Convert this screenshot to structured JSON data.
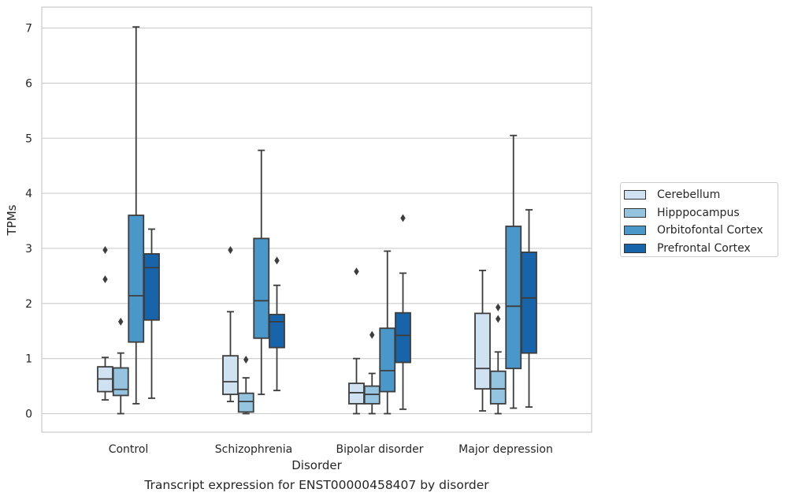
{
  "chart_data": {
    "type": "box",
    "title": "Transcript expression for ENST00000458407 by disorder",
    "xlabel": "Disorder",
    "ylabel": "TPMs",
    "ylim": [
      -0.32,
      7.38
    ],
    "yticks": [
      "0",
      "1",
      "2",
      "3",
      "4",
      "5",
      "6",
      "7"
    ],
    "grid": "horizontal",
    "legend_position": "right",
    "categories": [
      "Control",
      "Schizophrenia",
      "Bipolar disorder",
      "Major depression"
    ],
    "series": [
      {
        "name": "Cerebellum",
        "color": "#d0e1f2",
        "boxes": [
          {
            "whislo": 0.25,
            "q1": 0.4,
            "med": 0.63,
            "q3": 0.85,
            "whishi": 1.02,
            "fliers": [
              2.97,
              2.44
            ]
          },
          {
            "whislo": 0.22,
            "q1": 0.35,
            "med": 0.58,
            "q3": 1.05,
            "whishi": 1.85,
            "fliers": [
              2.97
            ]
          },
          {
            "whislo": 0.0,
            "q1": 0.18,
            "med": 0.38,
            "q3": 0.55,
            "whishi": 1.0,
            "fliers": [
              2.58
            ]
          },
          {
            "whislo": 0.05,
            "q1": 0.45,
            "med": 0.82,
            "q3": 1.82,
            "whishi": 2.6,
            "fliers": []
          }
        ]
      },
      {
        "name": "Hipppocampus",
        "color": "#94c4df",
        "boxes": [
          {
            "whislo": 0.0,
            "q1": 0.33,
            "med": 0.44,
            "q3": 0.83,
            "whishi": 1.1,
            "fliers": [
              1.67
            ]
          },
          {
            "whislo": 0.0,
            "q1": 0.03,
            "med": 0.22,
            "q3": 0.37,
            "whishi": 0.65,
            "fliers": [
              0.98
            ]
          },
          {
            "whislo": 0.0,
            "q1": 0.18,
            "med": 0.35,
            "q3": 0.5,
            "whishi": 0.73,
            "fliers": [
              1.43
            ]
          },
          {
            "whislo": 0.0,
            "q1": 0.18,
            "med": 0.45,
            "q3": 0.77,
            "whishi": 1.12,
            "fliers": [
              1.72,
              1.93
            ]
          }
        ]
      },
      {
        "name": "Orbitofontal Cortex",
        "color": "#4a98c9",
        "boxes": [
          {
            "whislo": 0.18,
            "q1": 1.3,
            "med": 2.14,
            "q3": 3.6,
            "whishi": 7.02,
            "fliers": []
          },
          {
            "whislo": 0.35,
            "q1": 1.37,
            "med": 2.05,
            "q3": 3.18,
            "whishi": 4.78,
            "fliers": []
          },
          {
            "whislo": 0.0,
            "q1": 0.4,
            "med": 0.78,
            "q3": 1.55,
            "whishi": 2.95,
            "fliers": []
          },
          {
            "whislo": 0.1,
            "q1": 0.82,
            "med": 1.95,
            "q3": 3.4,
            "whishi": 5.05,
            "fliers": []
          }
        ]
      },
      {
        "name": "Prefrontal Cortex",
        "color": "#1764ab",
        "boxes": [
          {
            "whislo": 0.28,
            "q1": 1.7,
            "med": 2.65,
            "q3": 2.9,
            "whishi": 3.35,
            "fliers": []
          },
          {
            "whislo": 0.42,
            "q1": 1.2,
            "med": 1.67,
            "q3": 1.8,
            "whishi": 2.33,
            "fliers": [
              2.78
            ]
          },
          {
            "whislo": 0.08,
            "q1": 0.93,
            "med": 1.42,
            "q3": 1.83,
            "whishi": 2.55,
            "fliers": [
              3.55
            ]
          },
          {
            "whislo": 0.12,
            "q1": 1.1,
            "med": 2.1,
            "q3": 2.93,
            "whishi": 3.7,
            "fliers": []
          }
        ]
      }
    ]
  }
}
